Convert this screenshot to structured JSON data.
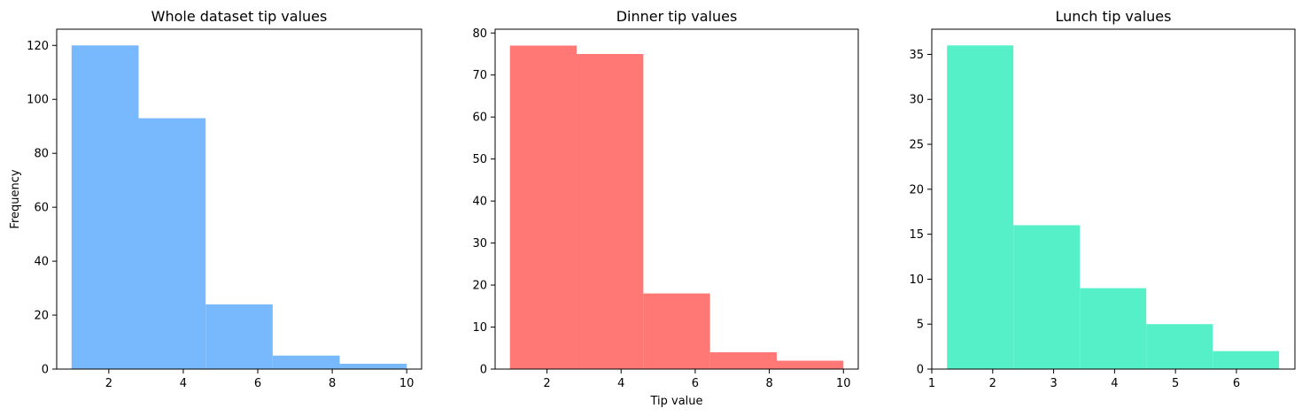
{
  "chart_data": [
    {
      "type": "bar",
      "title": "Whole dataset tip values",
      "xlabel": "",
      "ylabel": "Frequency",
      "bin_edges": [
        1.0,
        2.8,
        4.6,
        6.4,
        8.2,
        10.0
      ],
      "values": [
        120,
        93,
        24,
        5,
        2
      ],
      "xlim": [
        0.6,
        10.4
      ],
      "ylim": [
        0,
        126
      ],
      "xticks": [
        2,
        4,
        6,
        8,
        10
      ],
      "yticks": [
        0,
        20,
        40,
        60,
        80,
        100,
        120
      ],
      "color": "#78b8fc",
      "grid": false
    },
    {
      "type": "bar",
      "title": "Dinner tip values",
      "xlabel": "Tip value",
      "ylabel": "",
      "bin_edges": [
        1.0,
        2.8,
        4.6,
        6.4,
        8.2,
        10.0
      ],
      "values": [
        77,
        75,
        18,
        4,
        2
      ],
      "xlim": [
        0.6,
        10.4
      ],
      "ylim": [
        0,
        80.9
      ],
      "xticks": [
        2,
        4,
        6,
        8,
        10
      ],
      "yticks": [
        0,
        10,
        20,
        30,
        40,
        50,
        60,
        70,
        80
      ],
      "color": "#ff7875",
      "grid": false
    },
    {
      "type": "bar",
      "title": "Lunch tip values",
      "xlabel": "",
      "ylabel": "",
      "bin_edges": [
        1.25,
        2.34,
        3.43,
        4.52,
        5.61,
        6.7
      ],
      "values": [
        36,
        16,
        9,
        5,
        2
      ],
      "xlim": [
        1.0,
        6.96
      ],
      "ylim": [
        0,
        37.8
      ],
      "xticks": [
        1,
        2,
        3,
        4,
        5,
        6
      ],
      "yticks": [
        0,
        5,
        10,
        15,
        20,
        25,
        30,
        35
      ],
      "color": "#55f0c7",
      "grid": false
    }
  ]
}
